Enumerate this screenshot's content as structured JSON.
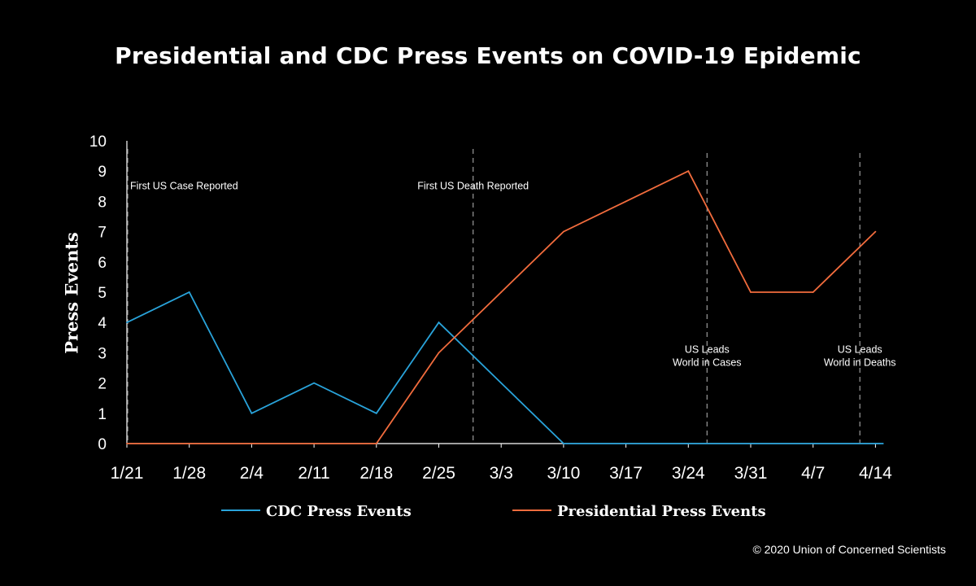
{
  "chart_data": {
    "type": "line",
    "title": "Presidential and CDC Press Events on COVID-19 Epidemic",
    "ylabel": "Press Events",
    "xlabel": "",
    "categories": [
      "1/21",
      "1/28",
      "2/4",
      "2/11",
      "2/18",
      "2/25",
      "3/3",
      "3/10",
      "3/17",
      "3/24",
      "3/31",
      "4/7",
      "4/14"
    ],
    "ylim": [
      0,
      10
    ],
    "yticks": [
      "0",
      "1",
      "2",
      "3",
      "4",
      "5",
      "6",
      "7",
      "8",
      "9",
      "10"
    ],
    "grid": false,
    "legend_position": "bottom",
    "series": [
      {
        "name": "CDC Press Events",
        "color": "#29a3da",
        "values": [
          4,
          5,
          1,
          2,
          1,
          4,
          2,
          0,
          0,
          0,
          0,
          0,
          0
        ]
      },
      {
        "name": "Presidential Press Events",
        "color": "#f26c3d",
        "values": [
          0,
          0,
          0,
          0,
          0,
          3,
          5,
          7,
          8,
          9,
          5,
          5,
          7
        ]
      }
    ],
    "annotations": [
      {
        "x": 0.0,
        "lines": [
          "First US Case Reported"
        ],
        "align": "left",
        "y": 8.4
      },
      {
        "x": 5.55,
        "lines": [
          "First US Death Reported"
        ],
        "align": "center",
        "y": 8.4
      },
      {
        "x": 9.3,
        "lines": [
          "US Leads",
          "World in Cases"
        ],
        "align": "center",
        "y": 3.0
      },
      {
        "x": 11.75,
        "lines": [
          "US Leads",
          "World in Deaths"
        ],
        "align": "center",
        "y": 3.0
      }
    ],
    "source": "© 2020 Union of Concerned Scientists"
  }
}
